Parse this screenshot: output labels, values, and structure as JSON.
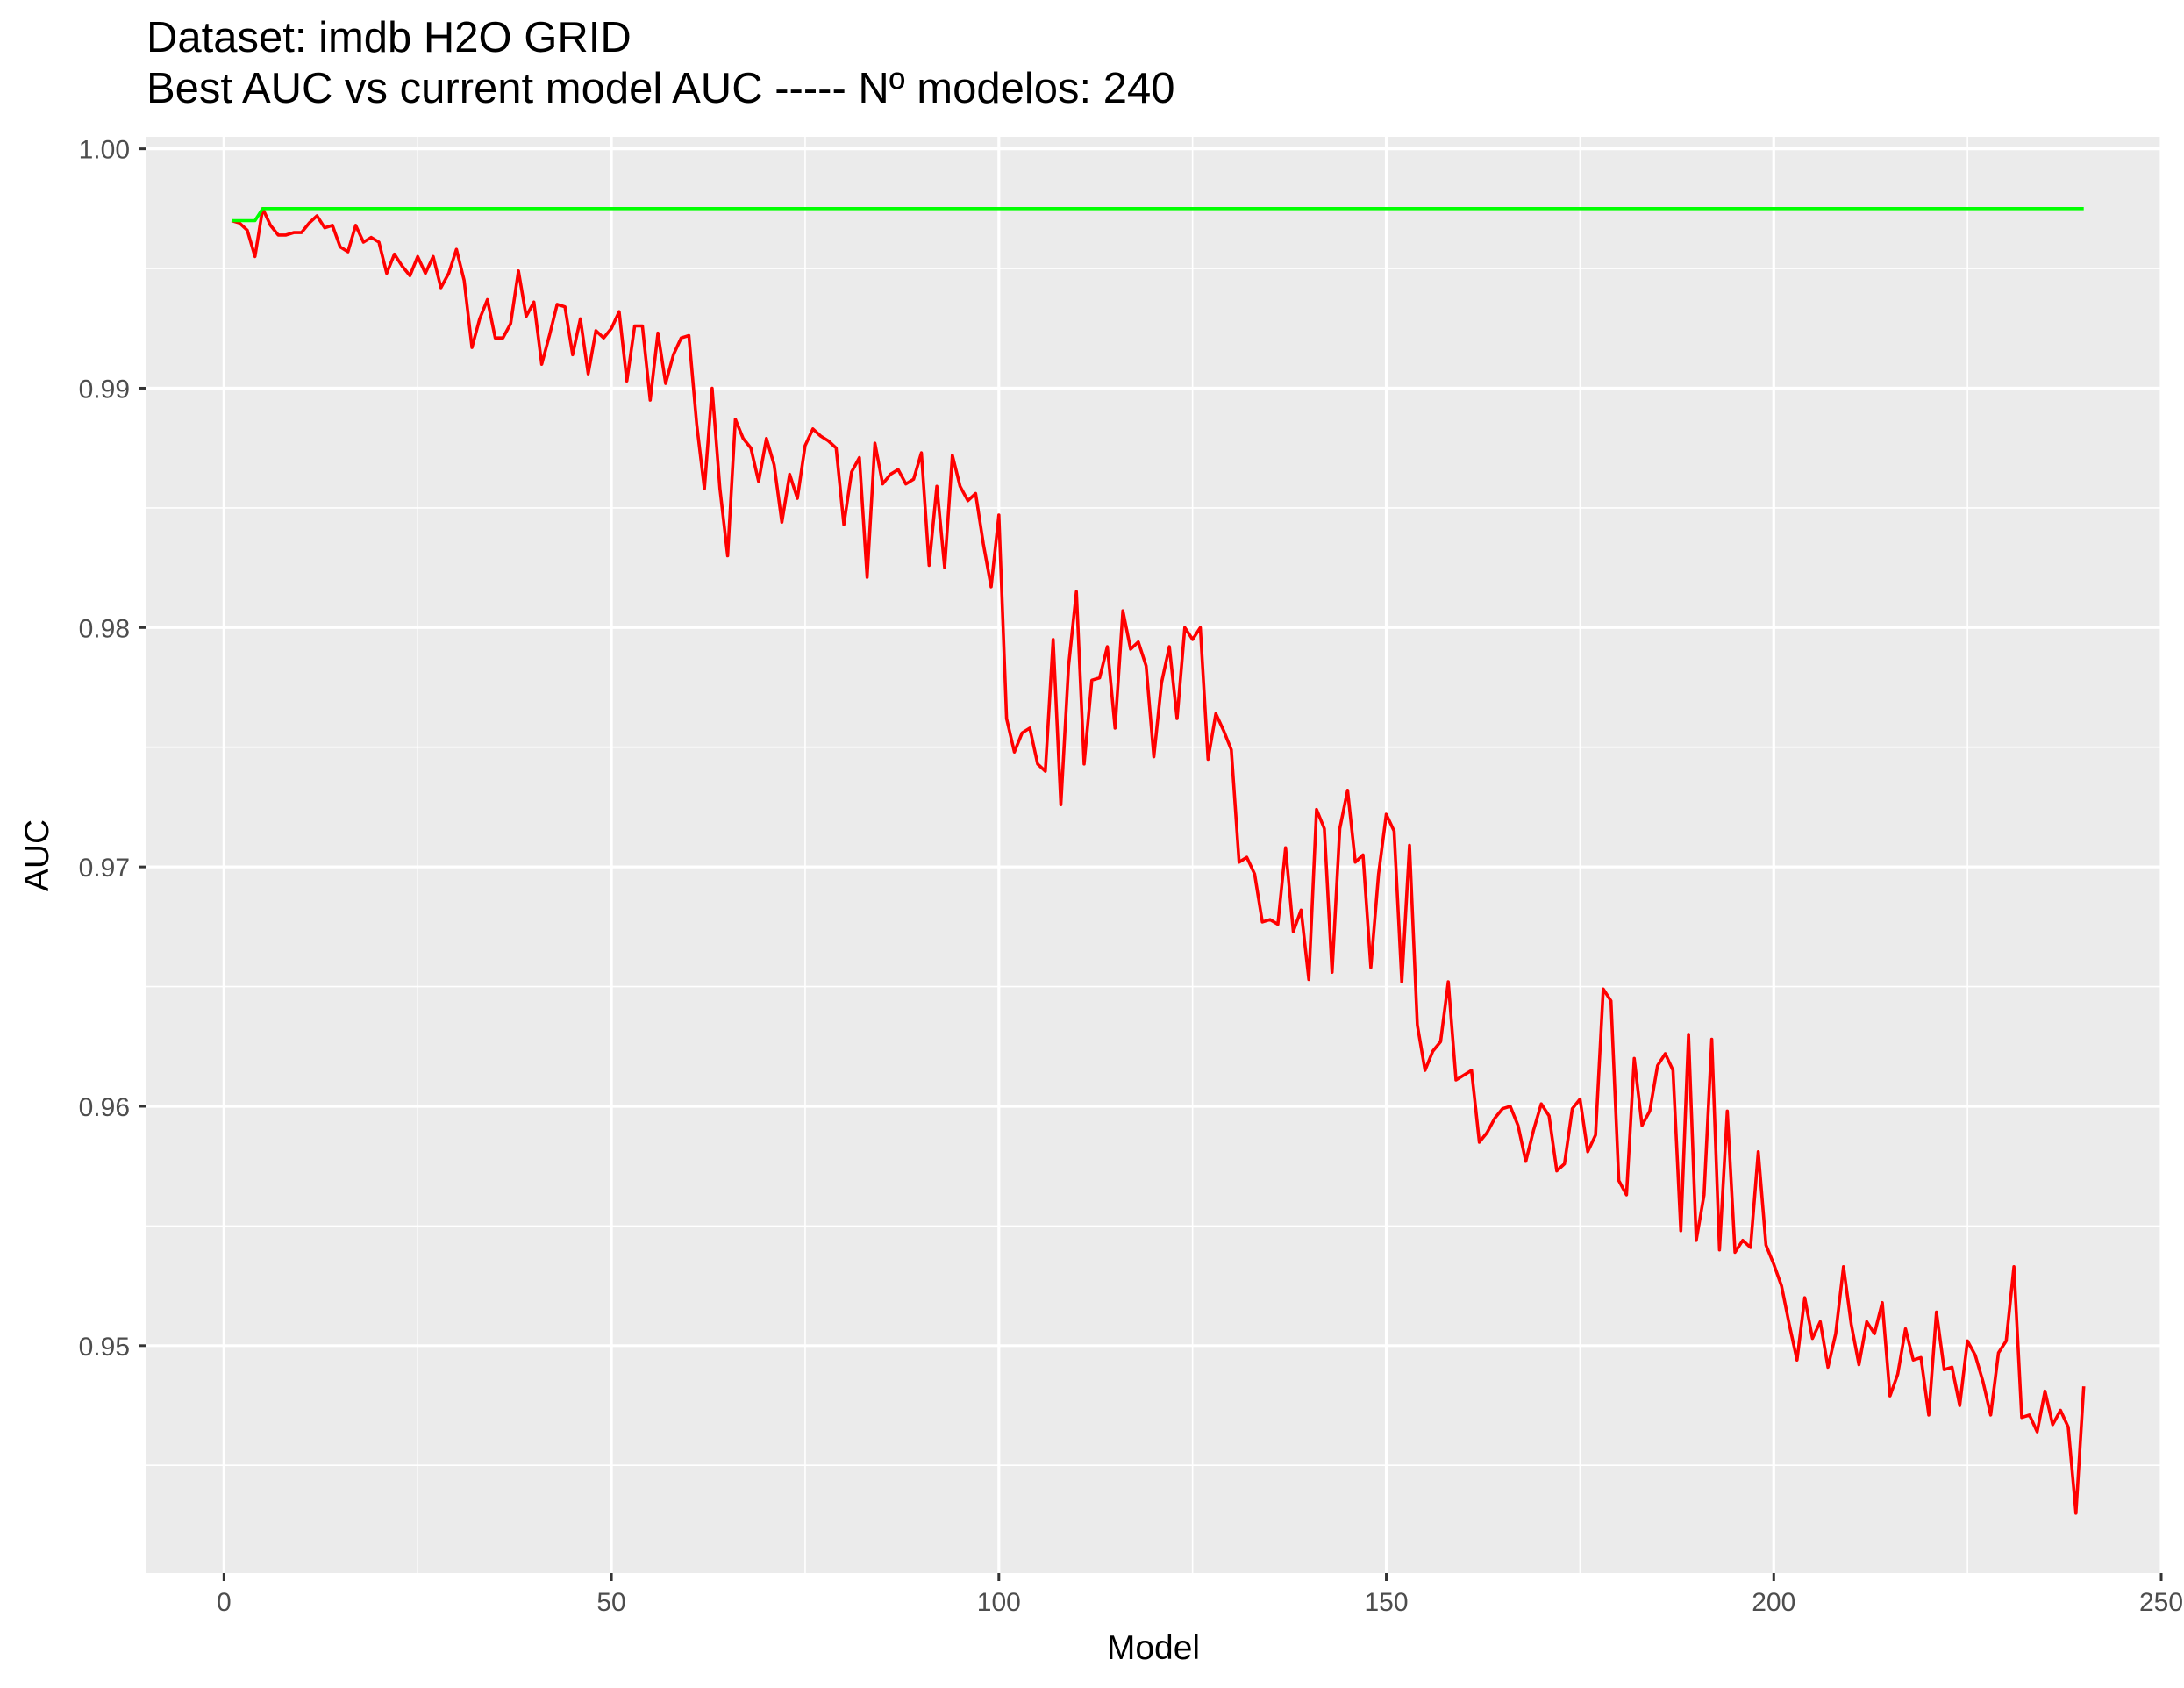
{
  "chart_data": {
    "type": "line",
    "title": "Dataset:  imdb H2O GRID",
    "subtitle": "Best AUC vs current model AUC  ----- Nº modelos:  240",
    "xlabel": "Model",
    "ylabel": "AUC",
    "xlim": [
      -10,
      250
    ],
    "ylim": [
      0.9405,
      1.0005
    ],
    "x_ticks": [
      0,
      50,
      100,
      150,
      200,
      250
    ],
    "y_ticks": [
      0.95,
      0.96,
      0.97,
      0.98,
      0.99,
      1.0
    ],
    "x_tick_labels": [
      "0",
      "50",
      "100",
      "150",
      "200",
      "250"
    ],
    "y_tick_labels": [
      "0.95",
      "0.96",
      "0.97",
      "0.98",
      "0.99",
      "1.00"
    ],
    "grid": true,
    "legend": "none",
    "colors": {
      "panel": "#ebebeb",
      "grid": "#ffffff",
      "current": "#ff0000",
      "best": "#00ff00"
    },
    "series": [
      {
        "color": "#ff0000",
        "x": [
          1,
          2,
          3,
          4,
          5,
          6,
          7,
          8,
          9,
          10,
          11,
          12,
          13,
          14,
          15,
          16,
          17,
          18,
          19,
          20,
          21,
          22,
          23,
          24,
          25,
          26,
          27,
          28,
          29,
          30,
          31,
          32,
          33,
          34,
          35,
          36,
          37,
          38,
          39,
          40,
          41,
          42,
          43,
          44,
          45,
          46,
          47,
          48,
          49,
          50,
          51,
          52,
          53,
          54,
          55,
          56,
          57,
          58,
          59,
          60,
          61,
          62,
          63,
          64,
          65,
          66,
          67,
          68,
          69,
          70,
          71,
          72,
          73,
          74,
          75,
          76,
          77,
          78,
          79,
          80,
          81,
          82,
          83,
          84,
          85,
          86,
          87,
          88,
          89,
          90,
          91,
          92,
          93,
          94,
          95,
          96,
          97,
          98,
          99,
          100,
          101,
          102,
          103,
          104,
          105,
          106,
          107,
          108,
          109,
          110,
          111,
          112,
          113,
          114,
          115,
          116,
          117,
          118,
          119,
          120,
          121,
          122,
          123,
          124,
          125,
          126,
          127,
          128,
          129,
          130,
          131,
          132,
          133,
          134,
          135,
          136,
          137,
          138,
          139,
          140,
          141,
          142,
          143,
          144,
          145,
          146,
          147,
          148,
          149,
          150,
          151,
          152,
          153,
          154,
          155,
          156,
          157,
          158,
          159,
          160,
          161,
          162,
          163,
          164,
          165,
          166,
          167,
          168,
          169,
          170,
          171,
          172,
          173,
          174,
          175,
          176,
          177,
          178,
          179,
          180,
          181,
          182,
          183,
          184,
          185,
          186,
          187,
          188,
          189,
          190,
          191,
          192,
          193,
          194,
          195,
          196,
          197,
          198,
          199,
          200,
          201,
          202,
          203,
          204,
          205,
          206,
          207,
          208,
          209,
          210,
          211,
          212,
          213,
          214,
          215,
          216,
          217,
          218,
          219,
          220,
          221,
          222,
          223,
          224,
          225,
          226,
          227,
          228,
          229,
          230,
          231,
          232,
          233,
          234,
          235,
          236,
          237,
          238,
          239,
          240
        ],
        "values": [
          0.997,
          0.9969,
          0.9966,
          0.9955,
          0.9975,
          0.9968,
          0.9964,
          0.9964,
          0.9965,
          0.9965,
          0.9969,
          0.9972,
          0.9967,
          0.9968,
          0.9959,
          0.9957,
          0.9968,
          0.9961,
          0.9963,
          0.9961,
          0.9948,
          0.9956,
          0.9951,
          0.9947,
          0.9955,
          0.9948,
          0.9955,
          0.9942,
          0.9948,
          0.9958,
          0.9945,
          0.9917,
          0.9929,
          0.9937,
          0.9921,
          0.9921,
          0.9927,
          0.9949,
          0.993,
          0.9936,
          0.991,
          0.9922,
          0.9935,
          0.9934,
          0.9914,
          0.9929,
          0.9906,
          0.9924,
          0.9921,
          0.9925,
          0.9932,
          0.9903,
          0.9926,
          0.9926,
          0.9895,
          0.9923,
          0.9902,
          0.9914,
          0.9921,
          0.9922,
          0.9885,
          0.9858,
          0.99,
          0.9858,
          0.983,
          0.9887,
          0.9879,
          0.9875,
          0.9861,
          0.9879,
          0.9868,
          0.9844,
          0.9864,
          0.9854,
          0.9876,
          0.9883,
          0.988,
          0.9878,
          0.9875,
          0.9843,
          0.9865,
          0.9871,
          0.9821,
          0.9877,
          0.986,
          0.9864,
          0.9866,
          0.986,
          0.9862,
          0.9873,
          0.9826,
          0.9859,
          0.9825,
          0.9872,
          0.9859,
          0.9853,
          0.9856,
          0.9835,
          0.9817,
          0.9847,
          0.9762,
          0.9748,
          0.9756,
          0.9758,
          0.9743,
          0.974,
          0.9795,
          0.9726,
          0.9784,
          0.9815,
          0.9743,
          0.9778,
          0.9779,
          0.9792,
          0.9758,
          0.9807,
          0.9791,
          0.9794,
          0.9784,
          0.9746,
          0.9777,
          0.9792,
          0.9762,
          0.98,
          0.9795,
          0.98,
          0.9745,
          0.9764,
          0.9757,
          0.9749,
          0.9702,
          0.9704,
          0.9697,
          0.9677,
          0.9678,
          0.9676,
          0.9708,
          0.9673,
          0.9682,
          0.9653,
          0.9724,
          0.9716,
          0.9656,
          0.9716,
          0.9732,
          0.9702,
          0.9705,
          0.9658,
          0.9697,
          0.9722,
          0.9715,
          0.9652,
          0.9709,
          0.9634,
          0.9615,
          0.9623,
          0.9627,
          0.9652,
          0.9611,
          0.9613,
          0.9615,
          0.9585,
          0.9589,
          0.9595,
          0.9599,
          0.96,
          0.9592,
          0.9577,
          0.959,
          0.9601,
          0.9596,
          0.9573,
          0.9576,
          0.9599,
          0.9603,
          0.9581,
          0.9588,
          0.9649,
          0.9644,
          0.9569,
          0.9563,
          0.962,
          0.9592,
          0.9598,
          0.9617,
          0.9622,
          0.9615,
          0.9548,
          0.963,
          0.9544,
          0.9563,
          0.9628,
          0.954,
          0.9598,
          0.9539,
          0.9544,
          0.9541,
          0.9581,
          0.9542,
          0.9534,
          0.9525,
          0.9509,
          0.9494,
          0.952,
          0.9503,
          0.951,
          0.9491,
          0.9505,
          0.9533,
          0.9509,
          0.9492,
          0.951,
          0.9505,
          0.9518,
          0.9479,
          0.9488,
          0.9507,
          0.9494,
          0.9495,
          0.9471,
          0.9514,
          0.949,
          0.9491,
          0.9475,
          0.9502,
          0.9496,
          0.9485,
          0.9471,
          0.9497,
          0.9502,
          0.9533,
          0.947,
          0.9471,
          0.9464,
          0.9481,
          0.9467,
          0.9473,
          0.9466,
          0.943,
          0.9483
        ]
      },
      {
        "color": "#00ff00",
        "x": [
          1,
          2,
          3,
          4,
          5,
          240
        ],
        "values": [
          0.997,
          0.997,
          0.997,
          0.997,
          0.9975,
          0.9975
        ]
      }
    ]
  }
}
